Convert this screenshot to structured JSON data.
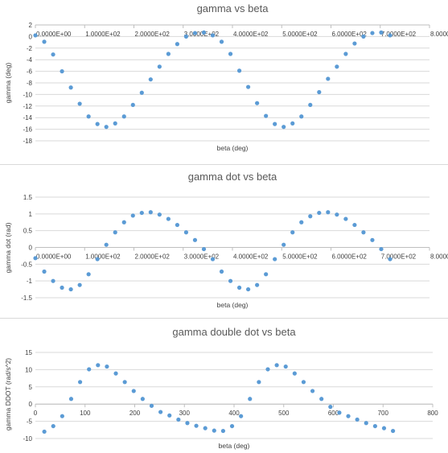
{
  "chart_data": [
    {
      "type": "scatter",
      "title": "gamma vs beta",
      "xlabel": "beta (deg)",
      "ylabel": "gamma (deg)",
      "xlim": [
        0,
        800
      ],
      "ylim": [
        -18,
        2
      ],
      "x_axis_position": "top",
      "x_ticks": [
        0,
        100,
        200,
        300,
        400,
        500,
        600,
        700,
        800
      ],
      "x_tick_labels": [
        "0.0000E+00",
        "1.0000E+02",
        "2.0000E+02",
        "3.0000E+02",
        "4.0000E+02",
        "5.0000E+02",
        "6.0000E+02",
        "7.0000E+02",
        "8.0000E+02"
      ],
      "y_ticks": [
        2,
        0,
        -2,
        -4,
        -6,
        -8,
        -10,
        -12,
        -14,
        -16,
        -18
      ],
      "y_tick_labels": [
        "2",
        "0",
        "-2",
        "-4",
        "-6",
        "-8",
        "-10",
        "-12",
        "-14",
        "-16",
        "-18"
      ],
      "grid": "horizontal",
      "color": "#5b9bd5",
      "series": [
        {
          "x": [
            0,
            18,
            36,
            54,
            72,
            90,
            108,
            126,
            144,
            162,
            180,
            198,
            216,
            234,
            252,
            270,
            288,
            306,
            324,
            342,
            360,
            378,
            396,
            414,
            432,
            450,
            468,
            486,
            504,
            522,
            540,
            558,
            576,
            594,
            612,
            630,
            648,
            666,
            684,
            702,
            720
          ],
          "y": [
            0.2,
            -0.9,
            -3.1,
            -6.0,
            -8.8,
            -11.6,
            -13.8,
            -15.1,
            -15.6,
            -15.0,
            -13.8,
            -11.8,
            -9.7,
            -7.4,
            -5.2,
            -3.0,
            -1.3,
            0.0,
            0.6,
            0.7,
            0.2,
            -0.9,
            -3.0,
            -5.9,
            -8.7,
            -11.5,
            -13.7,
            -15.1,
            -15.6,
            -15.0,
            -13.8,
            -11.8,
            -9.6,
            -7.3,
            -5.2,
            -3.0,
            -1.2,
            0.0,
            0.6,
            0.7,
            0.2
          ]
        }
      ]
    },
    {
      "type": "scatter",
      "title": "gamma dot vs beta",
      "xlabel": "beta (deg)",
      "ylabel": "gamma dot (rad)",
      "xlim": [
        0,
        800
      ],
      "ylim": [
        -1.5,
        1.5
      ],
      "x_axis_position": "zero",
      "x_ticks": [
        0,
        100,
        200,
        300,
        400,
        500,
        600,
        700,
        800
      ],
      "x_tick_labels": [
        "0.0000E+00",
        "1.0000E+02",
        "2.0000E+02",
        "3.0000E+02",
        "4.0000E+02",
        "5.0000E+02",
        "6.0000E+02",
        "7.0000E+02",
        "8.0000E+02"
      ],
      "y_ticks": [
        1.5,
        1,
        0.5,
        0,
        -0.5,
        -1,
        -1.5
      ],
      "y_tick_labels": [
        "1.5",
        "1",
        "0.5",
        "0",
        "-0.5",
        "-1",
        "-1.5"
      ],
      "grid": "horizontal",
      "color": "#5b9bd5",
      "series": [
        {
          "x": [
            0,
            18,
            36,
            54,
            72,
            90,
            108,
            126,
            144,
            162,
            180,
            198,
            216,
            234,
            252,
            270,
            288,
            306,
            324,
            342,
            360,
            378,
            396,
            414,
            432,
            450,
            468,
            486,
            504,
            522,
            540,
            558,
            576,
            594,
            612,
            630,
            648,
            666,
            684,
            702,
            720
          ],
          "y": [
            -0.32,
            -0.72,
            -1.0,
            -1.2,
            -1.25,
            -1.12,
            -0.8,
            -0.35,
            0.08,
            0.45,
            0.75,
            0.95,
            1.03,
            1.05,
            0.98,
            0.85,
            0.67,
            0.45,
            0.22,
            -0.05,
            -0.35,
            -0.72,
            -1.0,
            -1.2,
            -1.25,
            -1.12,
            -0.8,
            -0.35,
            0.08,
            0.45,
            0.75,
            0.93,
            1.03,
            1.05,
            0.98,
            0.85,
            0.67,
            0.45,
            0.22,
            -0.05,
            -0.35
          ]
        }
      ]
    },
    {
      "type": "scatter",
      "title": "gamma double dot vs beta",
      "xlabel": "beta (deg)",
      "ylabel": "gamma DDOT (rad/s^2)",
      "xlim": [
        0,
        800
      ],
      "ylim": [
        -10,
        15
      ],
      "x_axis_position": "zero",
      "x_ticks": [
        0,
        100,
        200,
        300,
        400,
        500,
        600,
        700,
        800
      ],
      "x_tick_labels": [
        "0",
        "100",
        "200",
        "300",
        "400",
        "500",
        "600",
        "700",
        "800"
      ],
      "y_ticks": [
        15,
        10,
        5,
        0,
        -5,
        -10
      ],
      "y_tick_labels": [
        "15",
        "10",
        "5",
        "0",
        "-5",
        "-10"
      ],
      "grid": "horizontal",
      "color": "#5b9bd5",
      "series": [
        {
          "x": [
            18,
            36,
            54,
            72,
            90,
            108,
            126,
            144,
            162,
            180,
            198,
            216,
            234,
            252,
            270,
            288,
            306,
            324,
            342,
            360,
            378,
            396,
            414,
            432,
            450,
            468,
            486,
            504,
            522,
            540,
            558,
            576,
            594,
            612,
            630,
            648,
            666,
            684,
            702,
            720
          ],
          "y": [
            -8.0,
            -6.4,
            -3.5,
            1.5,
            6.4,
            10.1,
            11.3,
            10.9,
            8.9,
            6.4,
            3.8,
            1.5,
            -0.5,
            -2.3,
            -3.3,
            -4.5,
            -5.5,
            -6.3,
            -7.0,
            -7.7,
            -7.8,
            -6.4,
            -3.5,
            1.5,
            6.4,
            10.1,
            11.3,
            10.9,
            8.9,
            6.4,
            3.8,
            1.5,
            -0.8,
            -2.5,
            -3.5,
            -4.5,
            -5.5,
            -6.4,
            -7.0,
            -7.8
          ]
        }
      ]
    }
  ]
}
